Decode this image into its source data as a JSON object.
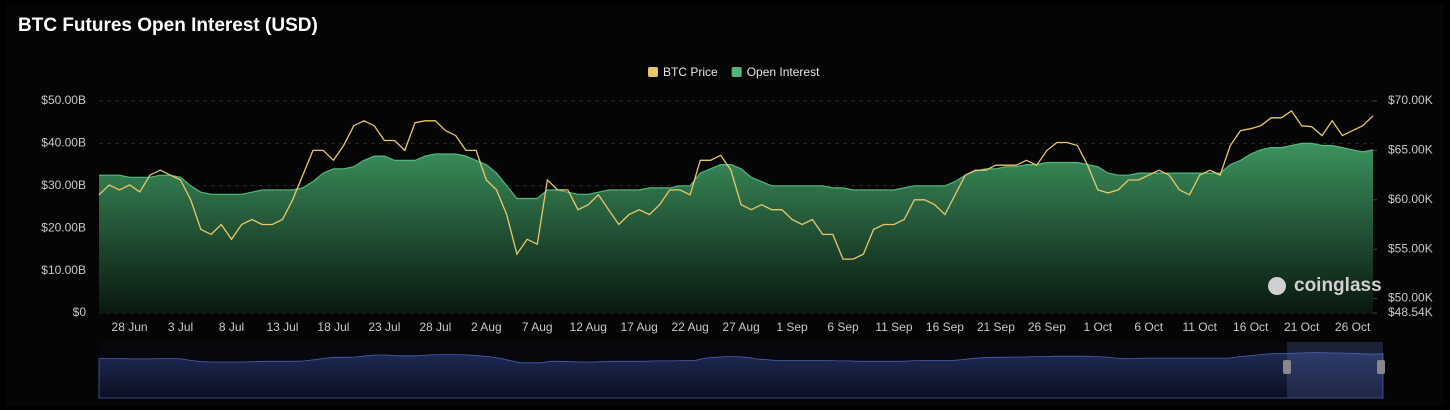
{
  "chart_data": {
    "type": "area-line",
    "title": "BTC Futures Open Interest (USD)",
    "watermark": "coinglass",
    "legend": "top",
    "grid": true,
    "categories": [
      null,
      null,
      null,
      "28 Jun",
      null,
      null,
      null,
      null,
      "3 Jul",
      null,
      null,
      null,
      null,
      "8 Jul",
      null,
      null,
      null,
      null,
      "13 Jul",
      null,
      null,
      null,
      null,
      "18 Jul",
      null,
      null,
      null,
      null,
      "23 Jul",
      null,
      null,
      null,
      null,
      "28 Jul",
      null,
      null,
      null,
      null,
      "2 Aug",
      null,
      null,
      null,
      null,
      "7 Aug",
      null,
      null,
      null,
      null,
      "12 Aug",
      null,
      null,
      null,
      null,
      "17 Aug",
      null,
      null,
      null,
      null,
      "22 Aug",
      null,
      null,
      null,
      null,
      "27 Aug",
      null,
      null,
      null,
      null,
      "1 Sep",
      null,
      null,
      null,
      null,
      "6 Sep",
      null,
      null,
      null,
      null,
      "11 Sep",
      null,
      null,
      null,
      null,
      "16 Sep",
      null,
      null,
      null,
      null,
      "21 Sep",
      null,
      null,
      null,
      null,
      "26 Sep",
      null,
      null,
      null,
      null,
      "1 Oct",
      null,
      null,
      null,
      null,
      "6 Oct",
      null,
      null,
      null,
      null,
      "11 Oct",
      null,
      null,
      null,
      null,
      "16 Oct",
      null,
      null,
      null,
      null,
      "21 Oct",
      null,
      null,
      null,
      null,
      "26 Oct",
      null,
      null
    ],
    "series": [
      {
        "name": "BTC Price",
        "color": "#e8c86a",
        "axis": "y2",
        "values": [
          60500,
          61500,
          61000,
          61500,
          60800,
          62500,
          63000,
          62500,
          62000,
          60000,
          57000,
          56500,
          57500,
          56000,
          57500,
          58000,
          57500,
          57500,
          58000,
          60000,
          62500,
          65000,
          65000,
          64000,
          65500,
          67500,
          68000,
          67500,
          66000,
          66000,
          65000,
          67800,
          68000,
          68000,
          67000,
          66500,
          65000,
          65000,
          62000,
          61000,
          58500,
          54500,
          56000,
          55500,
          62000,
          61000,
          61000,
          59000,
          59500,
          60500,
          59000,
          57500,
          58500,
          59000,
          58500,
          59500,
          61000,
          61000,
          60500,
          64000,
          64000,
          64500,
          63000,
          59500,
          59000,
          59500,
          59000,
          59000,
          58000,
          57500,
          58000,
          56500,
          56500,
          54000,
          54000,
          54500,
          57000,
          57500,
          57500,
          58000,
          60000,
          60000,
          59500,
          58500,
          60500,
          62500,
          63000,
          63000,
          63500,
          63500,
          63500,
          64000,
          63500,
          65000,
          65800,
          65800,
          65500,
          63500,
          61000,
          60700,
          61000,
          62000,
          62000,
          62500,
          63000,
          62500,
          61000,
          60500,
          62500,
          63000,
          62500,
          65500,
          67000,
          67200,
          67500,
          68300,
          68300,
          69000,
          67500,
          67400,
          66500,
          68000,
          66500,
          67000,
          67500,
          68500
        ]
      },
      {
        "name": "Open Interest",
        "color": "#52b77e",
        "values": [
          32500000000.0,
          32500000000.0,
          32500000000.0,
          32000000000.0,
          32000000000.0,
          32000000000.0,
          32500000000.0,
          32500000000.0,
          32000000000.0,
          30000000000.0,
          28500000000.0,
          28000000000.0,
          28000000000.0,
          28000000000.0,
          28000000000.0,
          28500000000.0,
          29000000000.0,
          29000000000.0,
          29000000000.0,
          29000000000.0,
          29500000000.0,
          31000000000.0,
          33000000000.0,
          34000000000.0,
          34000000000.0,
          34500000000.0,
          36000000000.0,
          37000000000.0,
          37000000000.0,
          36000000000.0,
          36000000000.0,
          36000000000.0,
          37000000000.0,
          37500000000.0,
          37500000000.0,
          37500000000.0,
          37000000000.0,
          36000000000.0,
          35000000000.0,
          33000000000.0,
          30000000000.0,
          27000000000.0,
          27000000000.0,
          27000000000.0,
          29000000000.0,
          29000000000.0,
          28500000000.0,
          28000000000.0,
          28000000000.0,
          28500000000.0,
          29000000000.0,
          29000000000.0,
          29000000000.0,
          29000000000.0,
          29500000000.0,
          29500000000.0,
          29500000000.0,
          30000000000.0,
          30000000000.0,
          33000000000.0,
          34000000000.0,
          35000000000.0,
          35000000000.0,
          34000000000.0,
          32000000000.0,
          31000000000.0,
          30000000000.0,
          30000000000.0,
          30000000000.0,
          30000000000.0,
          30000000000.0,
          30000000000.0,
          29500000000.0,
          29500000000.0,
          29000000000.0,
          29000000000.0,
          29000000000.0,
          29000000000.0,
          29000000000.0,
          29500000000.0,
          30000000000.0,
          30000000000.0,
          30000000000.0,
          30000000000.0,
          31000000000.0,
          32500000000.0,
          33500000000.0,
          34000000000.0,
          34000000000.0,
          34500000000.0,
          34500000000.0,
          35000000000.0,
          35000000000.0,
          35500000000.0,
          35500000000.0,
          35500000000.0,
          35500000000.0,
          35000000000.0,
          34500000000.0,
          33000000000.0,
          32500000000.0,
          32500000000.0,
          33000000000.0,
          33000000000.0,
          33000000000.0,
          33000000000.0,
          33000000000.0,
          33000000000.0,
          33000000000.0,
          33000000000.0,
          33000000000.0,
          35000000000.0,
          36000000000.0,
          37500000000.0,
          38500000000.0,
          39000000000.0,
          39000000000.0,
          39500000000.0,
          40000000000.0,
          40000000000.0,
          39500000000.0,
          39500000000.0,
          39000000000.0,
          38500000000.0,
          38000000000.0,
          38500000000.0
        ]
      }
    ],
    "ylim": [
      0,
      50000000000.0
    ],
    "yticks": [
      {
        "value": 0,
        "label": "$0"
      },
      {
        "value": 10000000000.0,
        "label": "$10.00B"
      },
      {
        "value": 20000000000.0,
        "label": "$20.00B"
      },
      {
        "value": 30000000000.0,
        "label": "$30.00B"
      },
      {
        "value": 40000000000.0,
        "label": "$40.00B"
      },
      {
        "value": 50000000000.0,
        "label": "$50.00B"
      }
    ],
    "y2lim": [
      48540,
      70000
    ],
    "y2ticks": [
      {
        "value": 48540,
        "label": "$48.54K"
      },
      {
        "value": 50000,
        "label": "$50.00K"
      },
      {
        "value": 55000,
        "label": "$55.00K"
      },
      {
        "value": 60000,
        "label": "$60.00K"
      },
      {
        "value": 65000,
        "label": "$65.00K"
      },
      {
        "value": 70000,
        "label": "$70.00K"
      }
    ]
  }
}
